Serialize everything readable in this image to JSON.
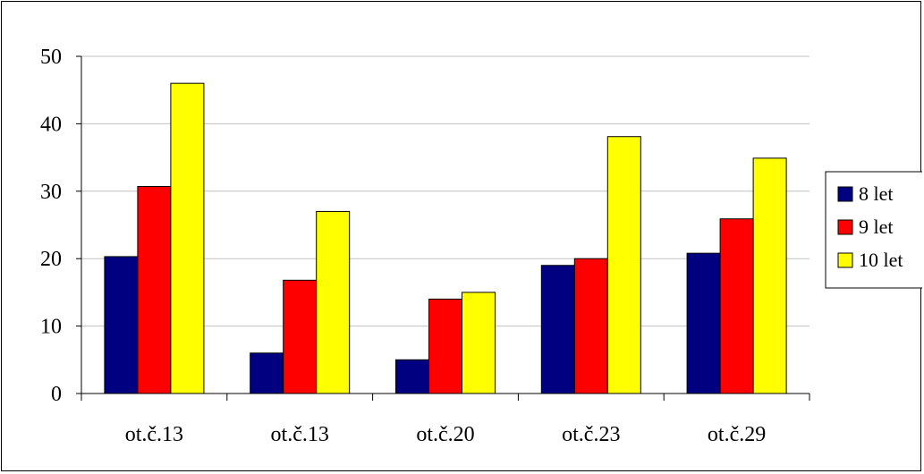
{
  "chart_data": {
    "type": "bar",
    "title": "",
    "xlabel": "",
    "ylabel": "",
    "categories": [
      "ot.č.13",
      "ot.č.13",
      "ot.č.20",
      "ot.č.23",
      "ot.č.29"
    ],
    "series": [
      {
        "name": "8 let",
        "color": "#000080",
        "values": [
          20.3,
          6,
          5,
          19,
          20.8
        ]
      },
      {
        "name": "9 let",
        "color": "#ff0000",
        "values": [
          30.7,
          16.8,
          14,
          20,
          25.9
        ]
      },
      {
        "name": "10 let",
        "color": "#ffff00",
        "values": [
          46,
          27,
          15,
          38.1,
          34.9
        ]
      }
    ],
    "ylim": [
      0,
      50
    ],
    "yticks": [
      0,
      10,
      20,
      30,
      40,
      50
    ],
    "grid": true,
    "legend_position": "right"
  }
}
